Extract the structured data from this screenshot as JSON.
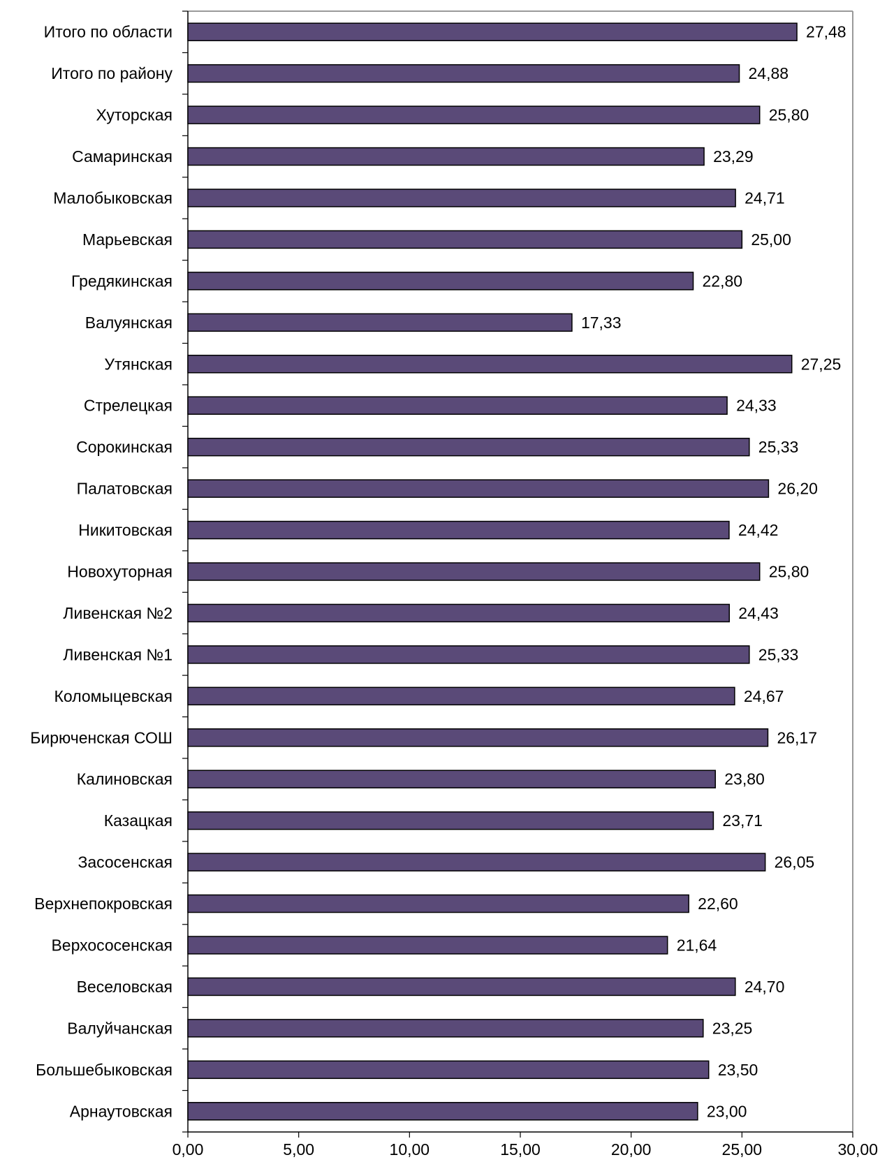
{
  "chart_data": {
    "type": "bar",
    "orientation": "horizontal",
    "title": "",
    "xlabel": "",
    "ylabel": "",
    "xlim": [
      0,
      30
    ],
    "x_ticks": [
      "0,00",
      "5,00",
      "10,00",
      "15,00",
      "20,00",
      "25,00",
      "30,00"
    ],
    "x_tick_values": [
      0,
      5,
      10,
      15,
      20,
      25,
      30
    ],
    "grid": false,
    "legend": "none",
    "bar_color": "#5a4a78",
    "categories": [
      "Итого по области",
      "Итого по району",
      "Хуторская",
      "Самаринская",
      "Малобыковская",
      "Марьевская",
      "Гредякинская",
      "Валуянская",
      "Утянская",
      "Стрелецкая",
      "Сорокинская",
      "Палатовская",
      "Никитовская",
      "Новохуторная",
      "Ливенская  №2",
      "Ливенская  №1",
      "Коломыцевская",
      "Бирюченская СОШ",
      "Калиновская",
      "Казацкая",
      "Засосенская",
      "Верхнепокровская",
      "Верхососенская",
      "Веселовская",
      "Валуйчанская",
      "Большебыковская",
      "Арнаутовская"
    ],
    "values": [
      27.48,
      24.88,
      25.8,
      23.29,
      24.71,
      25.0,
      22.8,
      17.33,
      27.25,
      24.33,
      25.33,
      26.2,
      24.42,
      25.8,
      24.43,
      25.33,
      24.67,
      26.17,
      23.8,
      23.71,
      26.05,
      22.6,
      21.64,
      24.7,
      23.25,
      23.5,
      23.0
    ],
    "value_labels": [
      "27,48",
      "24,88",
      "25,80",
      "23,29",
      "24,71",
      "25,00",
      "22,80",
      "17,33",
      "27,25",
      "24,33",
      "25,33",
      "26,20",
      "24,42",
      "25,80",
      "24,43",
      "25,33",
      "24,67",
      "26,17",
      "23,80",
      "23,71",
      "26,05",
      "22,60",
      "21,64",
      "24,70",
      "23,25",
      "23,50",
      "23,00"
    ]
  }
}
